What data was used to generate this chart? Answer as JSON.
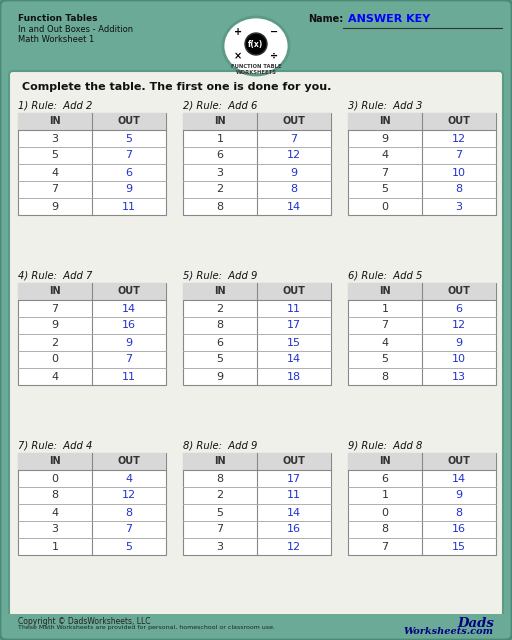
{
  "title_left_lines": [
    "Function Tables",
    "In and Out Boxes - Addition",
    "Math Worksheet 1"
  ],
  "name_label": "Name:",
  "answer_key_text": "ANSWER KEY",
  "instruction": "Complete the table. The first one is done for you.",
  "bg_color": "#6aaa96",
  "inner_bg": "#f0f0eb",
  "border_color": "#5a9a86",
  "tables": [
    {
      "number": "1)",
      "rule": "Rule:  Add 2",
      "in": [
        3,
        5,
        4,
        7,
        9
      ],
      "out": [
        5,
        7,
        6,
        9,
        11
      ]
    },
    {
      "number": "2)",
      "rule": "Rule:  Add 6",
      "in": [
        1,
        6,
        3,
        2,
        8
      ],
      "out": [
        7,
        12,
        9,
        8,
        14
      ]
    },
    {
      "number": "3)",
      "rule": "Rule:  Add 3",
      "in": [
        9,
        4,
        7,
        5,
        0
      ],
      "out": [
        12,
        7,
        10,
        8,
        3
      ]
    },
    {
      "number": "4)",
      "rule": "Rule:  Add 7",
      "in": [
        7,
        9,
        2,
        0,
        4
      ],
      "out": [
        14,
        16,
        9,
        7,
        11
      ]
    },
    {
      "number": "5)",
      "rule": "Rule:  Add 9",
      "in": [
        2,
        8,
        6,
        5,
        9
      ],
      "out": [
        11,
        17,
        15,
        14,
        18
      ]
    },
    {
      "number": "6)",
      "rule": "Rule:  Add 5",
      "in": [
        1,
        7,
        4,
        5,
        8
      ],
      "out": [
        6,
        12,
        9,
        10,
        13
      ]
    },
    {
      "number": "7)",
      "rule": "Rule:  Add 4",
      "in": [
        0,
        8,
        4,
        3,
        1
      ],
      "out": [
        4,
        12,
        8,
        7,
        5
      ]
    },
    {
      "number": "8)",
      "rule": "Rule:  Add 9",
      "in": [
        8,
        2,
        5,
        7,
        3
      ],
      "out": [
        17,
        11,
        14,
        16,
        12
      ]
    },
    {
      "number": "9)",
      "rule": "Rule:  Add 8",
      "in": [
        6,
        1,
        0,
        8,
        7
      ],
      "out": [
        14,
        9,
        8,
        16,
        15
      ]
    }
  ],
  "footer_copyright": "Copyright © DadsWorksheets, LLC",
  "footer_sub": "These Math Worksheets are provided for personal, homeschool or classroom use."
}
